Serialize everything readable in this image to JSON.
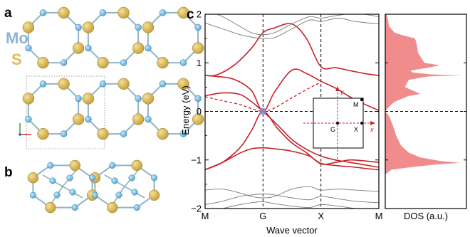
{
  "panels": {
    "a": "a",
    "b": "b",
    "c": "c"
  },
  "structure": {
    "labels": [
      {
        "text": "Mo",
        "color": "#8fb1d9"
      },
      {
        "text": "S",
        "color": "#e2bb55"
      }
    ],
    "atom_colors": {
      "mo": "#5aa9d6",
      "s": "#c8a23c",
      "bond": "#8fb4c8"
    }
  },
  "colors": {
    "band_red": "#c8222b",
    "band_gray": "#7a7a7a",
    "dos_fill": "#ef8080",
    "dirac_point": "#8a8acb"
  },
  "chart_data": [
    {
      "type": "line",
      "xlabel": "Wave vector",
      "ylabel": "Energy (eV)",
      "ylim": [
        -2,
        2
      ],
      "yticks": [
        "−2",
        "−1",
        "0",
        "1",
        "2"
      ],
      "kpoints": [
        "M",
        "G",
        "X",
        "M"
      ],
      "grid": false,
      "series": [
        {
          "style": "solid-red",
          "x": [
            0,
            0.2,
            0.5,
            0.8,
            1.0,
            1.2,
            1.5,
            1.75,
            2.0,
            2.25,
            2.5,
            2.75,
            3.0
          ],
          "y": [
            0.74,
            0.75,
            0.95,
            1.3,
            1.62,
            1.72,
            1.8,
            1.5,
            0.92,
            0.9,
            0.84,
            0.78,
            0.74
          ]
        },
        {
          "style": "solid-red",
          "x": [
            0,
            0.2,
            0.5,
            0.8,
            1.0,
            1.2,
            1.5,
            1.75,
            2.0,
            2.25,
            2.5,
            2.75,
            3.0
          ],
          "y": [
            0.74,
            0.72,
            0.66,
            0.43,
            0.0,
            0.4,
            0.85,
            0.78,
            0.62,
            0.48,
            0.3,
            0.15,
            0.02
          ]
        },
        {
          "style": "solid-red",
          "x": [
            0,
            0.3,
            0.6,
            0.8,
            1.0,
            1.25,
            1.5,
            1.75,
            2.0,
            2.25,
            2.5,
            2.75,
            3.0
          ],
          "y": [
            0.32,
            0.38,
            0.35,
            0.2,
            0.0,
            -0.28,
            -0.58,
            -0.78,
            -0.92,
            -1.0,
            -1.05,
            -1.1,
            -1.15
          ]
        },
        {
          "style": "solid-red",
          "x": [
            0,
            0.3,
            0.6,
            0.8,
            1.0,
            1.25,
            1.5,
            1.75,
            2.0,
            2.25,
            2.5,
            2.75,
            3.0
          ],
          "y": [
            -1.2,
            -1.05,
            -0.75,
            -0.4,
            0.0,
            -0.35,
            -0.65,
            -0.85,
            -1.08,
            -1.05,
            -1.0,
            -1.02,
            -1.05
          ]
        },
        {
          "style": "solid-red",
          "x": [
            0,
            0.3,
            0.6,
            0.8,
            1.0,
            1.2,
            1.5,
            1.8,
            2.0,
            2.3,
            2.6,
            2.8,
            3.0
          ],
          "y": [
            -1.2,
            -1.05,
            -0.86,
            -0.77,
            -0.75,
            -0.77,
            -0.82,
            -0.92,
            -1.07,
            -1.12,
            -1.15,
            -1.18,
            -1.2
          ]
        },
        {
          "style": "dashed-red",
          "x": [
            0,
            0.3,
            0.6,
            0.8,
            1.0,
            1.2,
            1.5,
            1.8,
            2.0
          ],
          "y": [
            0.3,
            0.22,
            0.14,
            0.06,
            0.0,
            0.07,
            0.28,
            0.48,
            0.6
          ]
        },
        {
          "style": "gray",
          "x": [
            0,
            0.3,
            0.6,
            0.8,
            1.0,
            1.2,
            1.5,
            1.8,
            2.0,
            2.3,
            2.6,
            3.0
          ],
          "y": [
            2.1,
            1.95,
            1.75,
            1.62,
            1.58,
            1.62,
            1.8,
            1.95,
            1.92,
            1.98,
            2.02,
            1.95
          ]
        },
        {
          "style": "gray",
          "x": [
            0,
            0.3,
            0.6,
            0.8,
            1.0,
            1.2,
            1.5,
            1.8,
            2.0,
            2.3,
            2.6,
            3.0
          ],
          "y": [
            1.82,
            1.7,
            1.58,
            1.53,
            1.5,
            1.52,
            1.7,
            1.88,
            1.85,
            1.92,
            1.85,
            1.8
          ]
        },
        {
          "style": "gray",
          "x": [
            0,
            0.3,
            0.6,
            0.8,
            1.0,
            1.2,
            1.5,
            1.8,
            2.0,
            2.3,
            2.6,
            3.0
          ],
          "y": [
            -1.62,
            -1.6,
            -1.68,
            -1.75,
            -1.78,
            -1.75,
            -1.6,
            -1.55,
            -1.62,
            -1.6,
            -1.62,
            -1.65
          ]
        },
        {
          "style": "gray",
          "x": [
            0,
            0.3,
            0.6,
            0.8,
            1.0,
            1.2,
            1.5,
            1.8,
            2.0,
            2.3,
            2.6,
            3.0
          ],
          "y": [
            -1.92,
            -1.85,
            -1.75,
            -1.72,
            -1.7,
            -1.72,
            -1.78,
            -1.82,
            -1.75,
            -1.8,
            -1.85,
            -1.88
          ]
        },
        {
          "style": "gray",
          "x": [
            0,
            0.3,
            0.6,
            0.8,
            1.0,
            1.2,
            1.5,
            1.8,
            2.0,
            2.3,
            2.6,
            3.0
          ],
          "y": [
            -2.1,
            -2.0,
            -1.92,
            -1.88,
            -1.86,
            -1.9,
            -1.95,
            -1.98,
            -1.92,
            -1.95,
            -2.0,
            -2.05
          ]
        }
      ],
      "inset": {
        "labels": [
          "y",
          "x",
          "M",
          "G",
          "X"
        ],
        "points": [
          {
            "label": "M",
            "kx": 1,
            "ky": 1
          },
          {
            "label": "G",
            "kx": 0,
            "ky": 0
          },
          {
            "label": "X",
            "kx": 1,
            "ky": 0
          }
        ]
      }
    },
    {
      "type": "area",
      "xlabel": "DOS (a.u.)",
      "ylim": [
        -2,
        2
      ],
      "profile": [
        {
          "y": 2.0,
          "v": 0.02
        },
        {
          "y": 1.75,
          "v": 0.05
        },
        {
          "y": 1.62,
          "v": 0.12
        },
        {
          "y": 1.58,
          "v": 0.2
        },
        {
          "y": 1.5,
          "v": 0.38
        },
        {
          "y": 1.4,
          "v": 0.4
        },
        {
          "y": 1.2,
          "v": 0.42
        },
        {
          "y": 1.0,
          "v": 0.5
        },
        {
          "y": 0.95,
          "v": 0.7
        },
        {
          "y": 0.9,
          "v": 0.55
        },
        {
          "y": 0.84,
          "v": 0.32
        },
        {
          "y": 0.8,
          "v": 0.35
        },
        {
          "y": 0.76,
          "v": 0.6
        },
        {
          "y": 0.74,
          "v": 0.98
        },
        {
          "y": 0.72,
          "v": 0.55
        },
        {
          "y": 0.65,
          "v": 0.3
        },
        {
          "y": 0.5,
          "v": 0.25
        },
        {
          "y": 0.36,
          "v": 0.45
        },
        {
          "y": 0.32,
          "v": 0.3
        },
        {
          "y": 0.2,
          "v": 0.12
        },
        {
          "y": 0.1,
          "v": 0.05
        },
        {
          "y": 0.0,
          "v": 0.0
        },
        {
          "y": -0.1,
          "v": 0.05
        },
        {
          "y": -0.3,
          "v": 0.1
        },
        {
          "y": -0.5,
          "v": 0.14
        },
        {
          "y": -0.7,
          "v": 0.2
        },
        {
          "y": -0.85,
          "v": 0.3
        },
        {
          "y": -0.95,
          "v": 0.45
        },
        {
          "y": -1.02,
          "v": 0.7
        },
        {
          "y": -1.06,
          "v": 0.95
        },
        {
          "y": -1.1,
          "v": 0.6
        },
        {
          "y": -1.15,
          "v": 0.32
        },
        {
          "y": -1.2,
          "v": 0.08
        },
        {
          "y": -1.3,
          "v": 0.0
        },
        {
          "y": -2.0,
          "v": 0.0
        }
      ]
    }
  ]
}
